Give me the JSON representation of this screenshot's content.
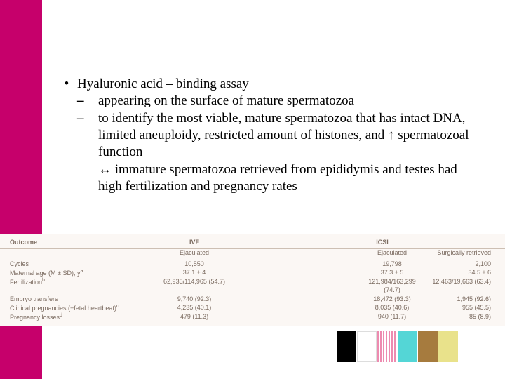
{
  "sidebar": {
    "color": "#c6006b"
  },
  "bullets": {
    "main": "Hyaluronic acid – binding assay",
    "sub1": "appearing on the surface of mature spermatozoa",
    "sub2": "to identify the most viable, mature spermatozoa that has intact DNA, limited aneuploidy, restricted amount of histones, and ↑ spermatozoal function",
    "harr": "↔ immature spermatozoa retrieved from epididymis and testes had high fertilization and pregnancy rates"
  },
  "table": {
    "background": "#fbf7f4",
    "header": {
      "outcome": "Outcome",
      "ivf": "IVF",
      "ej1": "Ejaculated",
      "icsi": "ICSI",
      "ej2": "Ejaculated",
      "surg": "Surgically retrieved"
    },
    "rows": [
      {
        "label": "Cycles",
        "v1": "10,550",
        "v2": "",
        "v3": "19,798",
        "v4": "2,100"
      },
      {
        "label": "Maternal age (M ± SD), y",
        "sup": "a",
        "v1": "37.1 ± 4",
        "v2": "",
        "v3": "37.3 ± 5",
        "v4": "34.5 ± 6"
      },
      {
        "label": "Fertilization",
        "sup": "b",
        "v1": "62,935/114,965 (54.7)",
        "v2": "",
        "v3": "121,984/163,299 (74.7)",
        "v4": "12,463/19,663 (63.4)"
      },
      {
        "label": "Embryo transfers",
        "v1": "9,740 (92.3)",
        "v2": "",
        "v3": "18,472 (93.3)",
        "v4": "1,945 (92.6)"
      },
      {
        "label": "Clinical pregnancies (+fetal heartbeat)",
        "sup": "c",
        "v1": "4,235 (40.1)",
        "v2": "",
        "v3": "8,035 (40.6)",
        "v4": "955 (45.5)"
      },
      {
        "label": "Pregnancy losses",
        "sup": "d",
        "v1": "479 (11.3)",
        "v2": "",
        "v3": "940 (11.7)",
        "v4": "85 (8.9)"
      }
    ]
  },
  "swatches": [
    "#000000",
    "#ffffff",
    "pattern",
    "#54d6d6",
    "#a67b3e",
    "#e9e28b"
  ]
}
